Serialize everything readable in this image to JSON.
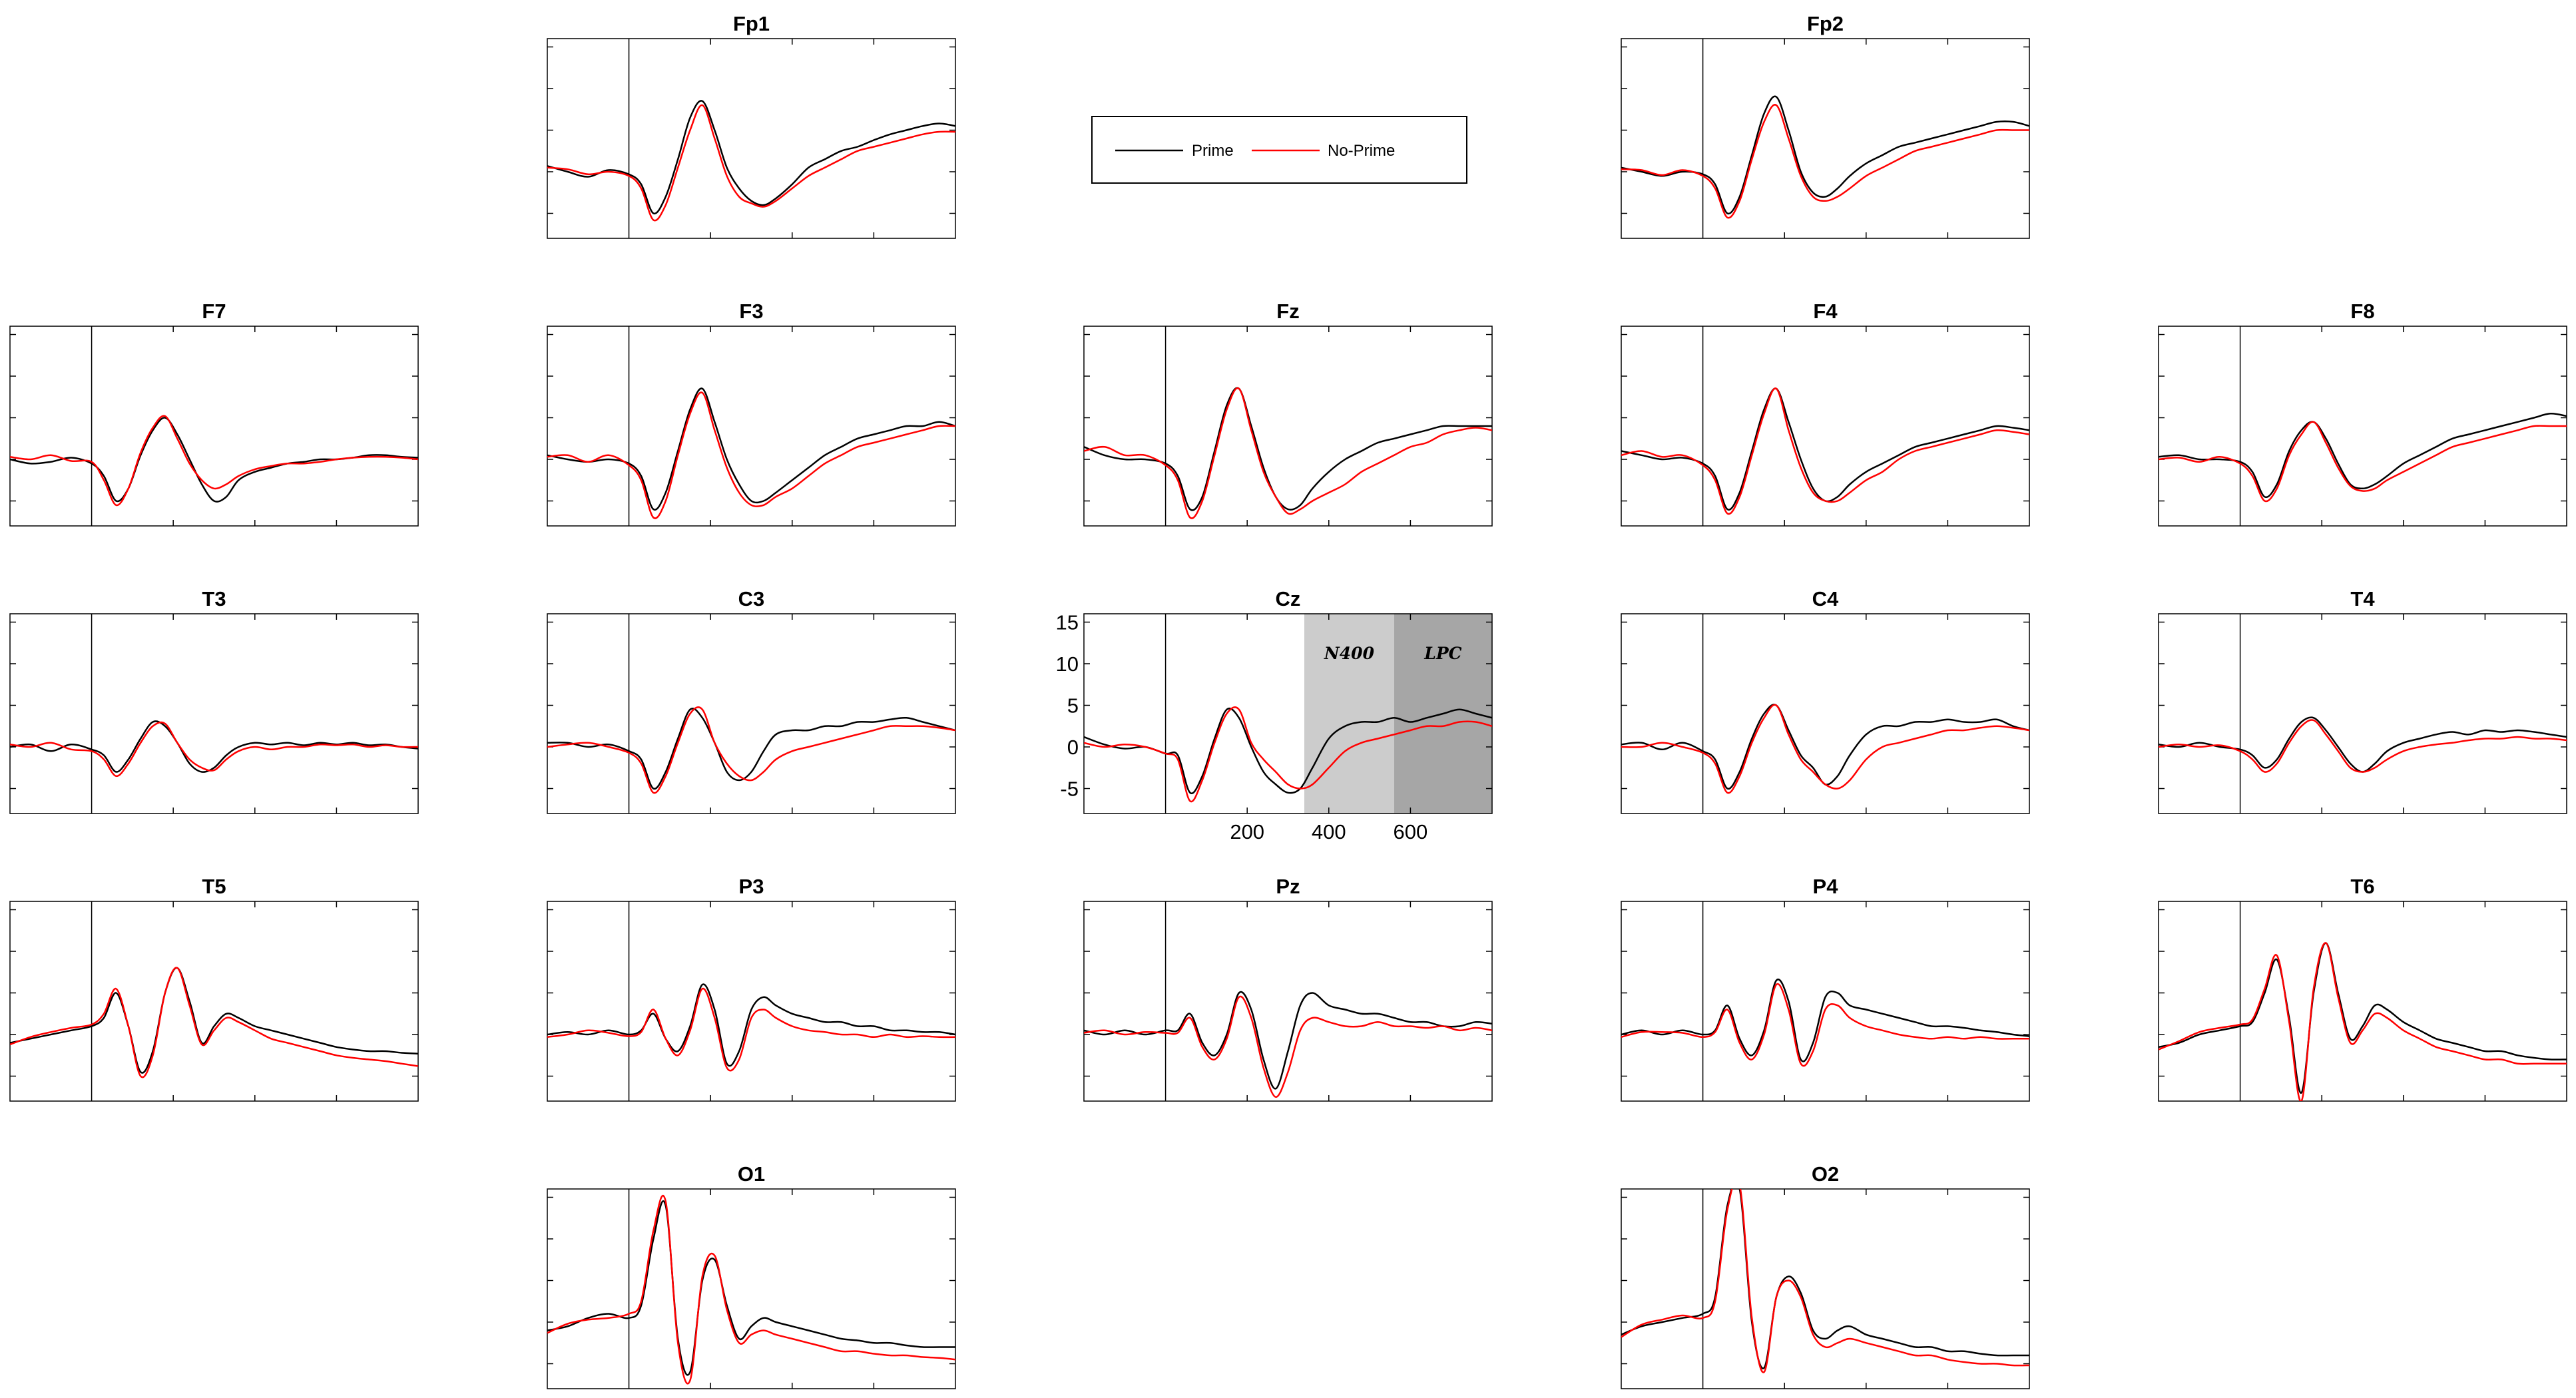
{
  "legend": {
    "entries": [
      {
        "label": "Prime",
        "color": "#000000"
      },
      {
        "label": "No-Prime",
        "color": "#ff0000"
      }
    ]
  },
  "colors": {
    "prime": "#000000",
    "noprime": "#ff0000",
    "n400_shade": "#cccccc",
    "lpc_shade": "#a6a6a6"
  },
  "chart_data": {
    "type": "line",
    "layout": "topographic grid of electrodes",
    "series_names": [
      "Prime",
      "No-Prime"
    ],
    "xlim": [
      -200,
      800
    ],
    "ylim": [
      -8,
      16
    ],
    "x_ticks": [
      200,
      400,
      600
    ],
    "y_ticks": [
      15,
      10,
      5,
      0,
      -5
    ],
    "onset_line_x": 0,
    "grid": false,
    "legend_placement": "top-center",
    "regions": [
      {
        "label": "N400",
        "x_range": [
          340,
          560
        ]
      },
      {
        "label": "LPC",
        "x_range": [
          560,
          800
        ]
      }
    ],
    "x_points": [
      -200,
      -150,
      -100,
      -50,
      0,
      30,
      60,
      90,
      120,
      150,
      180,
      210,
      240,
      270,
      300,
      330,
      360,
      400,
      440,
      480,
      520,
      560,
      600,
      640,
      680,
      720,
      760,
      800
    ],
    "electrodes": [
      {
        "name": "Fp1",
        "prime": [
          0.7,
          0.0,
          -0.6,
          0.2,
          -0.3,
          -1.5,
          -5.0,
          -3.0,
          1.5,
          6.5,
          8.5,
          5.0,
          0.5,
          -2.0,
          -3.5,
          -4.0,
          -3.2,
          -1.5,
          0.5,
          1.5,
          2.5,
          3.0,
          3.8,
          4.5,
          5.0,
          5.5,
          5.8,
          5.5
        ],
        "noprime": [
          0.5,
          0.3,
          -0.3,
          0.0,
          -0.5,
          -2.0,
          -5.8,
          -4.0,
          0.5,
          5.0,
          8.0,
          4.0,
          -0.5,
          -3.0,
          -3.8,
          -4.2,
          -3.5,
          -2.0,
          -0.5,
          0.5,
          1.5,
          2.5,
          3.0,
          3.5,
          4.0,
          4.5,
          4.8,
          4.8
        ]
      },
      {
        "name": "Fp2",
        "prime": [
          0.5,
          0.0,
          -0.5,
          0.0,
          -0.3,
          -1.5,
          -5.0,
          -3.0,
          2.0,
          7.0,
          9.0,
          5.0,
          0.0,
          -2.5,
          -3.0,
          -2.0,
          -0.5,
          1.0,
          2.0,
          3.0,
          3.5,
          4.0,
          4.5,
          5.0,
          5.5,
          6.0,
          6.0,
          5.5
        ],
        "noprime": [
          0.3,
          0.2,
          -0.4,
          0.2,
          -0.5,
          -2.0,
          -5.5,
          -3.5,
          1.5,
          6.0,
          8.0,
          4.0,
          -0.5,
          -3.0,
          -3.5,
          -3.0,
          -2.0,
          -0.5,
          0.5,
          1.5,
          2.5,
          3.0,
          3.5,
          4.0,
          4.5,
          5.0,
          5.0,
          5.0
        ]
      },
      {
        "name": "F7",
        "prime": [
          0.0,
          -0.5,
          -0.3,
          0.2,
          -0.5,
          -2.0,
          -5.0,
          -3.5,
          0.5,
          3.5,
          5.0,
          3.0,
          0.0,
          -3.0,
          -5.0,
          -4.5,
          -2.5,
          -1.5,
          -1.0,
          -0.5,
          -0.3,
          0.0,
          0.0,
          0.2,
          0.5,
          0.5,
          0.3,
          0.2
        ],
        "noprime": [
          0.3,
          0.0,
          0.5,
          -0.2,
          -0.3,
          -2.5,
          -5.5,
          -3.5,
          0.8,
          3.8,
          5.2,
          2.5,
          -0.5,
          -2.5,
          -3.5,
          -3.0,
          -2.0,
          -1.2,
          -0.8,
          -0.5,
          -0.5,
          -0.3,
          0.0,
          0.2,
          0.3,
          0.3,
          0.2,
          0.0
        ]
      },
      {
        "name": "F3",
        "prime": [
          0.5,
          0.0,
          -0.3,
          0.0,
          -0.5,
          -2.0,
          -6.0,
          -4.0,
          1.0,
          6.0,
          8.5,
          4.5,
          0.0,
          -3.0,
          -5.0,
          -5.0,
          -4.0,
          -2.5,
          -1.0,
          0.5,
          1.5,
          2.5,
          3.0,
          3.5,
          4.0,
          4.0,
          4.5,
          4.0
        ],
        "noprime": [
          0.3,
          0.5,
          -0.3,
          0.5,
          -0.7,
          -2.5,
          -7.0,
          -5.0,
          0.5,
          5.5,
          8.0,
          3.5,
          -1.0,
          -4.0,
          -5.5,
          -5.5,
          -4.5,
          -3.5,
          -2.0,
          -0.5,
          0.5,
          1.5,
          2.0,
          2.5,
          3.0,
          3.5,
          4.0,
          4.0
        ]
      },
      {
        "name": "Fz",
        "prime": [
          1.5,
          0.5,
          0.0,
          0.0,
          -0.5,
          -2.0,
          -6.0,
          -4.5,
          1.0,
          6.5,
          8.5,
          4.0,
          -1.0,
          -4.5,
          -6.0,
          -5.5,
          -3.5,
          -1.5,
          0.0,
          1.0,
          2.0,
          2.5,
          3.0,
          3.5,
          4.0,
          4.0,
          4.0,
          4.0
        ],
        "noprime": [
          1.0,
          1.5,
          0.5,
          0.5,
          -0.7,
          -2.5,
          -7.0,
          -5.0,
          0.5,
          6.0,
          8.5,
          3.5,
          -1.5,
          -4.5,
          -6.5,
          -6.0,
          -5.0,
          -4.0,
          -3.0,
          -1.5,
          -0.5,
          0.5,
          1.5,
          2.0,
          3.0,
          3.5,
          3.8,
          3.5
        ]
      },
      {
        "name": "F4",
        "prime": [
          1.0,
          0.5,
          0.0,
          0.2,
          -0.5,
          -2.0,
          -6.0,
          -4.0,
          1.0,
          6.0,
          8.5,
          4.5,
          0.0,
          -3.5,
          -5.0,
          -4.5,
          -3.0,
          -1.5,
          -0.5,
          0.5,
          1.5,
          2.0,
          2.5,
          3.0,
          3.5,
          4.0,
          3.8,
          3.5
        ],
        "noprime": [
          0.5,
          1.0,
          0.3,
          0.5,
          -0.7,
          -2.5,
          -6.5,
          -4.5,
          0.5,
          5.5,
          8.5,
          3.5,
          -1.0,
          -4.0,
          -5.0,
          -5.0,
          -4.0,
          -2.5,
          -1.5,
          0.0,
          1.0,
          1.5,
          2.0,
          2.5,
          3.0,
          3.5,
          3.3,
          3.0
        ]
      },
      {
        "name": "F8",
        "prime": [
          0.3,
          0.5,
          0.0,
          0.0,
          -0.3,
          -1.5,
          -4.5,
          -3.0,
          1.0,
          3.5,
          4.5,
          2.5,
          -0.5,
          -3.0,
          -3.5,
          -3.0,
          -2.0,
          -0.5,
          0.5,
          1.5,
          2.5,
          3.0,
          3.5,
          4.0,
          4.5,
          5.0,
          5.5,
          5.2
        ],
        "noprime": [
          0.0,
          0.2,
          -0.3,
          0.3,
          -0.5,
          -2.0,
          -5.0,
          -3.5,
          0.5,
          3.0,
          4.5,
          2.0,
          -1.0,
          -3.2,
          -3.8,
          -3.5,
          -2.5,
          -1.5,
          -0.5,
          0.5,
          1.5,
          2.0,
          2.5,
          3.0,
          3.5,
          4.0,
          4.0,
          4.0
        ]
      },
      {
        "name": "T3",
        "prime": [
          0.0,
          0.3,
          -0.5,
          0.3,
          -0.3,
          -1.0,
          -3.0,
          -1.5,
          1.0,
          3.0,
          2.5,
          0.5,
          -2.0,
          -3.0,
          -2.5,
          -1.0,
          0.0,
          0.5,
          0.3,
          0.5,
          0.2,
          0.5,
          0.3,
          0.5,
          0.2,
          0.3,
          0.0,
          -0.2
        ],
        "noprime": [
          0.3,
          0.0,
          0.5,
          -0.3,
          -0.5,
          -1.5,
          -3.5,
          -2.0,
          0.5,
          2.5,
          2.8,
          0.5,
          -1.5,
          -2.5,
          -2.8,
          -1.5,
          -0.5,
          0.0,
          -0.3,
          0.0,
          0.0,
          0.3,
          0.2,
          0.3,
          0.0,
          0.2,
          0.0,
          0.0
        ]
      },
      {
        "name": "C3",
        "prime": [
          0.5,
          0.5,
          0.0,
          0.3,
          -0.5,
          -1.5,
          -5.0,
          -3.0,
          1.0,
          4.5,
          3.5,
          0.5,
          -3.0,
          -4.0,
          -3.0,
          -0.5,
          1.5,
          2.0,
          2.0,
          2.5,
          2.5,
          3.0,
          3.0,
          3.3,
          3.5,
          3.0,
          2.5,
          2.0
        ],
        "noprime": [
          0.0,
          0.3,
          0.5,
          0.0,
          -0.7,
          -2.0,
          -5.5,
          -3.5,
          0.5,
          4.0,
          4.5,
          0.5,
          -2.0,
          -3.5,
          -4.0,
          -3.0,
          -1.5,
          -0.5,
          0.0,
          0.5,
          1.0,
          1.5,
          2.0,
          2.5,
          2.5,
          2.5,
          2.3,
          2.0
        ]
      },
      {
        "name": "Cz",
        "prime": [
          1.2,
          0.3,
          -0.2,
          0.0,
          -0.8,
          -1.0,
          -5.5,
          -3.5,
          1.0,
          4.5,
          3.5,
          0.0,
          -3.0,
          -4.5,
          -5.5,
          -5.0,
          -2.5,
          1.0,
          2.5,
          3.0,
          3.0,
          3.5,
          3.0,
          3.5,
          4.0,
          4.5,
          4.0,
          3.5
        ],
        "noprime": [
          0.5,
          0.0,
          0.3,
          0.0,
          -0.8,
          -1.5,
          -6.5,
          -4.0,
          0.5,
          4.0,
          4.5,
          0.5,
          -1.5,
          -3.0,
          -4.5,
          -5.0,
          -4.5,
          -2.5,
          -0.5,
          0.5,
          1.0,
          1.5,
          2.0,
          2.5,
          2.5,
          3.0,
          3.0,
          2.5
        ]
      },
      {
        "name": "C4",
        "prime": [
          0.3,
          0.5,
          -0.3,
          0.5,
          -0.5,
          -1.5,
          -5.0,
          -3.0,
          1.0,
          4.0,
          5.0,
          2.0,
          -1.0,
          -2.5,
          -4.5,
          -3.5,
          -1.0,
          1.5,
          2.5,
          2.5,
          3.0,
          3.0,
          3.3,
          3.0,
          3.0,
          3.3,
          2.5,
          2.0
        ],
        "noprime": [
          0.0,
          0.0,
          0.5,
          0.0,
          -0.7,
          -2.0,
          -5.5,
          -3.5,
          0.5,
          3.5,
          5.0,
          1.5,
          -1.5,
          -3.0,
          -4.5,
          -5.0,
          -4.0,
          -1.5,
          0.0,
          0.5,
          1.0,
          1.5,
          2.0,
          2.0,
          2.3,
          2.5,
          2.3,
          2.0
        ]
      },
      {
        "name": "T4",
        "prime": [
          0.3,
          0.0,
          0.5,
          0.0,
          -0.3,
          -1.0,
          -2.5,
          -1.5,
          1.0,
          3.0,
          3.5,
          2.0,
          0.0,
          -2.0,
          -3.0,
          -2.0,
          -0.5,
          0.5,
          1.0,
          1.5,
          1.8,
          1.5,
          2.0,
          1.8,
          2.0,
          1.8,
          1.5,
          1.2
        ],
        "noprime": [
          0.0,
          0.3,
          0.0,
          0.2,
          -0.5,
          -1.5,
          -3.0,
          -2.0,
          0.5,
          2.5,
          3.2,
          1.5,
          -0.5,
          -2.5,
          -3.0,
          -2.5,
          -1.5,
          -0.5,
          0.0,
          0.3,
          0.5,
          0.8,
          1.0,
          1.0,
          1.2,
          1.0,
          1.0,
          0.8
        ]
      },
      {
        "name": "T5",
        "prime": [
          -1.0,
          -0.5,
          0.0,
          0.5,
          1.0,
          2.0,
          5.0,
          1.0,
          -4.5,
          -2.0,
          5.0,
          8.0,
          4.0,
          -1.0,
          1.0,
          2.5,
          2.0,
          1.0,
          0.5,
          0.0,
          -0.5,
          -1.0,
          -1.5,
          -1.8,
          -2.0,
          -2.0,
          -2.2,
          -2.3
        ],
        "noprime": [
          -1.2,
          -0.3,
          0.3,
          0.8,
          1.2,
          2.5,
          5.5,
          1.0,
          -5.0,
          -2.5,
          5.0,
          8.0,
          3.5,
          -1.2,
          0.5,
          2.0,
          1.5,
          0.5,
          -0.5,
          -1.0,
          -1.5,
          -2.0,
          -2.5,
          -2.8,
          -3.0,
          -3.2,
          -3.5,
          -3.8
        ]
      },
      {
        "name": "P3",
        "prime": [
          0.0,
          0.3,
          0.0,
          0.5,
          0.0,
          0.5,
          2.5,
          -0.5,
          -2.0,
          1.0,
          6.0,
          3.0,
          -3.5,
          -2.0,
          3.0,
          4.5,
          3.5,
          2.5,
          2.0,
          1.5,
          1.5,
          1.0,
          1.0,
          0.5,
          0.5,
          0.3,
          0.3,
          0.0
        ],
        "noprime": [
          -0.3,
          0.0,
          0.5,
          0.2,
          -0.2,
          0.3,
          3.0,
          -0.5,
          -2.5,
          0.5,
          5.5,
          2.0,
          -4.0,
          -3.0,
          2.0,
          3.0,
          2.0,
          1.0,
          0.5,
          0.3,
          0.0,
          0.0,
          -0.3,
          0.0,
          -0.3,
          -0.2,
          -0.3,
          -0.3
        ]
      },
      {
        "name": "Pz",
        "prime": [
          0.5,
          0.0,
          0.5,
          0.0,
          0.5,
          0.5,
          2.5,
          -1.0,
          -2.5,
          0.0,
          5.0,
          3.0,
          -3.0,
          -6.5,
          -2.0,
          3.5,
          5.0,
          3.5,
          3.0,
          2.5,
          2.5,
          2.0,
          1.5,
          1.5,
          1.0,
          1.0,
          1.5,
          1.3
        ],
        "noprime": [
          0.2,
          0.5,
          0.0,
          0.3,
          0.2,
          0.2,
          2.0,
          -1.5,
          -3.0,
          -0.5,
          4.5,
          2.0,
          -4.0,
          -7.5,
          -4.5,
          0.5,
          2.0,
          1.5,
          1.0,
          1.0,
          1.5,
          1.0,
          1.0,
          0.8,
          1.0,
          0.5,
          0.8,
          0.5
        ]
      },
      {
        "name": "P4",
        "prime": [
          0.0,
          0.5,
          0.0,
          0.5,
          0.0,
          0.5,
          3.5,
          -0.5,
          -2.5,
          0.5,
          6.5,
          4.0,
          -3.0,
          -1.0,
          4.5,
          5.0,
          3.5,
          3.0,
          2.5,
          2.0,
          1.5,
          1.0,
          1.0,
          0.8,
          0.5,
          0.3,
          0.0,
          -0.2
        ],
        "noprime": [
          -0.3,
          0.3,
          0.3,
          0.2,
          -0.3,
          0.3,
          3.0,
          -1.0,
          -3.0,
          0.0,
          6.0,
          3.0,
          -3.5,
          -2.0,
          3.0,
          3.5,
          2.0,
          1.0,
          0.5,
          0.0,
          -0.3,
          -0.5,
          -0.3,
          -0.5,
          -0.3,
          -0.5,
          -0.5,
          -0.5
        ]
      },
      {
        "name": "T6",
        "prime": [
          -1.5,
          -1.0,
          0.0,
          0.5,
          1.0,
          1.5,
          5.0,
          9.0,
          2.0,
          -7.0,
          5.0,
          11.0,
          5.0,
          -0.5,
          1.0,
          3.5,
          3.0,
          1.5,
          0.5,
          -0.5,
          -1.0,
          -1.5,
          -2.0,
          -2.0,
          -2.5,
          -2.8,
          -3.0,
          -3.0
        ],
        "noprime": [
          -1.8,
          -0.8,
          0.3,
          0.8,
          1.2,
          1.8,
          5.5,
          9.5,
          1.5,
          -8.0,
          5.5,
          11.0,
          4.5,
          -1.0,
          0.5,
          2.5,
          2.0,
          0.5,
          -0.5,
          -1.5,
          -2.0,
          -2.5,
          -3.0,
          -3.0,
          -3.5,
          -3.5,
          -3.5,
          -3.5
        ]
      },
      {
        "name": "O1",
        "prime": [
          -1.0,
          -0.5,
          0.5,
          1.0,
          0.5,
          2.0,
          10.0,
          14.0,
          -2.0,
          -6.0,
          5.0,
          7.5,
          2.0,
          -2.0,
          -0.5,
          0.5,
          0.0,
          -0.5,
          -1.0,
          -1.5,
          -2.0,
          -2.2,
          -2.5,
          -2.5,
          -2.8,
          -3.0,
          -3.0,
          -3.0
        ],
        "noprime": [
          -1.3,
          -0.2,
          0.3,
          0.5,
          1.0,
          2.5,
          11.0,
          14.5,
          -2.5,
          -7.0,
          5.5,
          8.0,
          1.5,
          -2.5,
          -1.5,
          -1.0,
          -1.5,
          -2.0,
          -2.5,
          -3.0,
          -3.5,
          -3.5,
          -3.8,
          -4.0,
          -4.0,
          -4.2,
          -4.3,
          -4.5
        ]
      },
      {
        "name": "O2",
        "prime": [
          -1.5,
          -0.5,
          0.0,
          0.5,
          1.0,
          3.0,
          14.0,
          16.0,
          0.0,
          -5.5,
          3.0,
          5.5,
          3.5,
          -1.0,
          -2.0,
          -1.0,
          -0.5,
          -1.5,
          -2.0,
          -2.5,
          -3.0,
          -3.0,
          -3.5,
          -3.5,
          -3.8,
          -4.0,
          -4.0,
          -4.0
        ],
        "noprime": [
          -1.8,
          -0.3,
          0.3,
          0.8,
          0.5,
          2.5,
          13.5,
          16.5,
          0.5,
          -6.0,
          3.0,
          5.0,
          3.0,
          -1.5,
          -3.0,
          -2.5,
          -2.0,
          -2.5,
          -3.0,
          -3.5,
          -4.0,
          -4.0,
          -4.5,
          -4.8,
          -5.0,
          -5.0,
          -5.2,
          -5.2
        ]
      }
    ]
  }
}
